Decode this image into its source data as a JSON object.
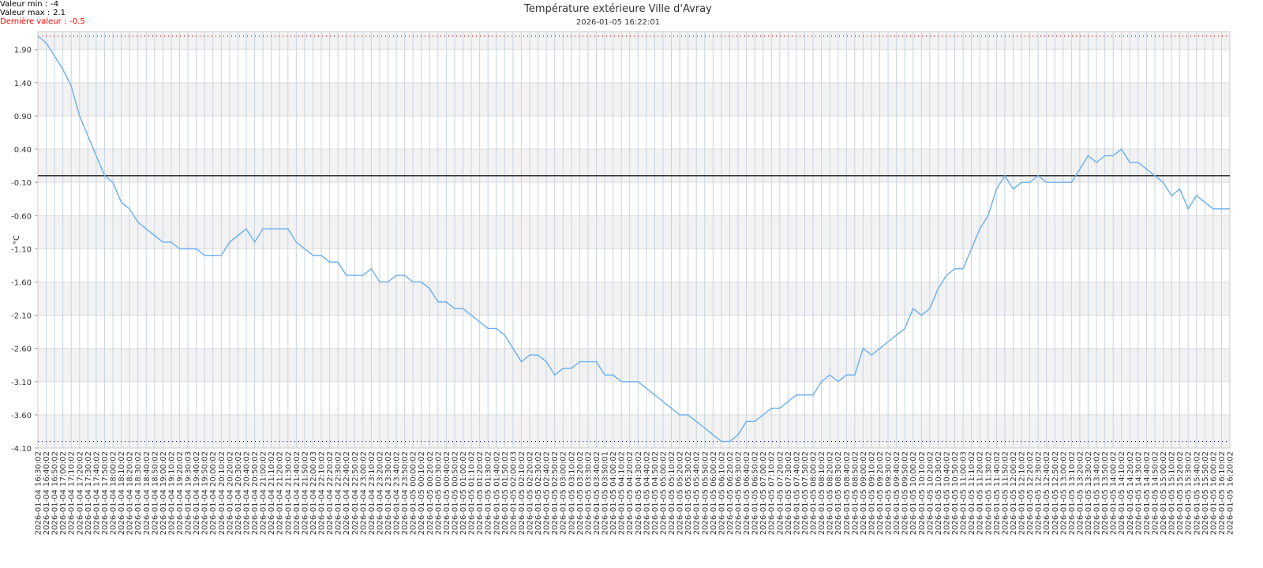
{
  "chart_data": {
    "type": "line",
    "title": "Température extérieure Ville d'Avray",
    "subtitle": "2026-01-05 16:22:01",
    "y_label": "°C",
    "stats": [
      {
        "label": "Valeur min :",
        "value": -4,
        "color": "#000000",
        "line_color": "#0000cc"
      },
      {
        "label": "Valeur max :",
        "value": 2.1,
        "color": "#000000",
        "line_color": "#cc0000"
      },
      {
        "label": "Dernière valeur :",
        "value": -0.5,
        "color": "#ff0000"
      }
    ],
    "reference_line": 0,
    "ylim": [
      -4.1,
      2.17
    ],
    "yticks": [
      {
        "value": -4.1,
        "label": "-4.10"
      },
      {
        "value": -3.6,
        "label": "-3.60"
      },
      {
        "value": -3.1,
        "label": "-3.10"
      },
      {
        "value": -2.6,
        "label": "-2.60"
      },
      {
        "value": -2.1,
        "label": "-2.10"
      },
      {
        "value": -1.6,
        "label": "-1.60"
      },
      {
        "value": -1.1,
        "label": "-1.10"
      },
      {
        "value": -0.6,
        "label": "-0.60"
      },
      {
        "value": -0.1,
        "label": "-0.10"
      },
      {
        "value": 0.4,
        "label": "0.40"
      },
      {
        "value": 0.9,
        "label": "0.90"
      },
      {
        "value": 1.4,
        "label": "1.40"
      },
      {
        "value": 1.9,
        "label": "1.90"
      }
    ],
    "grid": true,
    "categories": [
      "2026-01-04 16:30:02",
      "2026-01-04 16:40:02",
      "2026-01-04 16:50:02",
      "2026-01-04 17:00:02",
      "2026-01-04 17:10:02",
      "2026-01-04 17:20:02",
      "2026-01-04 17:30:02",
      "2026-01-04 17:40:02",
      "2026-01-04 17:50:02",
      "2026-01-04 18:00:02",
      "2026-01-04 18:10:02",
      "2026-01-04 18:20:02",
      "2026-01-04 18:30:02",
      "2026-01-04 18:40:02",
      "2026-01-04 18:50:02",
      "2026-01-04 19:00:02",
      "2026-01-04 19:10:02",
      "2026-01-04 19:20:02",
      "2026-01-04 19:30:03",
      "2026-01-04 19:40:02",
      "2026-01-04 19:50:02",
      "2026-01-04 20:00:02",
      "2026-01-04 20:10:02",
      "2026-01-04 20:20:02",
      "2026-01-04 20:30:02",
      "2026-01-04 20:40:02",
      "2026-01-04 20:50:02",
      "2026-01-04 21:00:02",
      "2026-01-04 21:10:02",
      "2026-01-04 21:20:02",
      "2026-01-04 21:30:02",
      "2026-01-04 21:40:02",
      "2026-01-04 21:50:02",
      "2026-01-04 22:00:03",
      "2026-01-04 22:10:02",
      "2026-01-04 22:20:02",
      "2026-01-04 22:30:02",
      "2026-01-04 22:40:02",
      "2026-01-04 22:50:02",
      "2026-01-04 23:00:02",
      "2026-01-04 23:10:02",
      "2026-01-04 23:20:02",
      "2026-01-04 23:30:02",
      "2026-01-04 23:40:02",
      "2026-01-04 23:50:02",
      "2026-01-05 00:00:02",
      "2026-01-05 00:10:02",
      "2026-01-05 00:20:02",
      "2026-01-05 00:30:02",
      "2026-01-05 00:40:02",
      "2026-01-05 00:50:02",
      "2026-01-05 01:00:02",
      "2026-01-05 01:10:02",
      "2026-01-05 01:20:02",
      "2026-01-05 01:30:02",
      "2026-01-05 01:40:02",
      "2026-01-05 01:50:02",
      "2026-01-05 02:00:03",
      "2026-01-05 02:10:02",
      "2026-01-05 02:20:02",
      "2026-01-05 02:30:02",
      "2026-01-05 02:40:02",
      "2026-01-05 02:50:02",
      "2026-01-05 03:00:02",
      "2026-01-05 03:10:02",
      "2026-01-05 03:20:02",
      "2026-01-05 03:30:02",
      "2026-01-05 03:40:02",
      "2026-01-05 03:50:01",
      "2026-01-05 04:00:02",
      "2026-01-05 04:10:02",
      "2026-01-05 04:20:02",
      "2026-01-05 04:30:02",
      "2026-01-05 04:40:02",
      "2026-01-05 04:50:02",
      "2026-01-05 05:00:02",
      "2026-01-05 05:10:02",
      "2026-01-05 05:20:02",
      "2026-01-05 05:30:02",
      "2026-01-05 05:40:02",
      "2026-01-05 05:50:02",
      "2026-01-05 06:00:02",
      "2026-01-05 06:10:02",
      "2026-01-05 06:20:02",
      "2026-01-05 06:30:02",
      "2026-01-05 06:40:02",
      "2026-01-05 06:50:02",
      "2026-01-05 07:00:02",
      "2026-01-05 07:10:02",
      "2026-01-05 07:20:02",
      "2026-01-05 07:30:02",
      "2026-01-05 07:40:02",
      "2026-01-05 07:50:02",
      "2026-01-05 08:00:02",
      "2026-01-05 08:10:02",
      "2026-01-05 08:20:02",
      "2026-01-05 08:30:02",
      "2026-01-05 08:40:02",
      "2026-01-05 08:50:02",
      "2026-01-05 09:00:02",
      "2026-01-05 09:10:02",
      "2026-01-05 09:20:02",
      "2026-01-05 09:30:02",
      "2026-01-05 09:40:02",
      "2026-01-05 09:50:02",
      "2026-01-05 10:00:02",
      "2026-01-05 10:10:02",
      "2026-01-05 10:20:02",
      "2026-01-05 10:30:02",
      "2026-01-05 10:40:02",
      "2026-01-05 10:50:02",
      "2026-01-05 11:00:03",
      "2026-01-05 11:10:02",
      "2026-01-05 11:20:02",
      "2026-01-05 11:30:02",
      "2026-01-05 11:40:02",
      "2026-01-05 11:50:02",
      "2026-01-05 12:00:02",
      "2026-01-05 12:10:02",
      "2026-01-05 12:20:02",
      "2026-01-05 12:30:02",
      "2026-01-05 12:40:02",
      "2026-01-05 12:50:02",
      "2026-01-05 13:00:02",
      "2026-01-05 13:10:02",
      "2026-01-05 13:20:02",
      "2026-01-05 13:30:02",
      "2026-01-05 13:40:02",
      "2026-01-05 13:50:02",
      "2026-01-05 14:00:02",
      "2026-01-05 14:10:02",
      "2026-01-05 14:20:02",
      "2026-01-05 14:30:02",
      "2026-01-05 14:40:02",
      "2026-01-05 14:50:02",
      "2026-01-05 15:00:02",
      "2026-01-05 15:10:02",
      "2026-01-05 15:20:02",
      "2026-01-05 15:30:02",
      "2026-01-05 15:40:02",
      "2026-01-05 15:50:02",
      "2026-01-05 16:00:02",
      "2026-01-05 16:10:02",
      "2026-01-05 16:20:02"
    ],
    "color": "#6aaef0",
    "values": [
      2.1,
      2.0,
      1.8,
      1.6,
      1.35,
      0.9,
      0.6,
      0.3,
      0.0,
      -0.1,
      -0.4,
      -0.5,
      -0.7,
      -0.8,
      -0.9,
      -1.0,
      -1.0,
      -1.1,
      -1.1,
      -1.1,
      -1.2,
      -1.2,
      -1.2,
      -1.0,
      -0.9,
      -0.8,
      -1.0,
      -0.8,
      -0.8,
      -0.8,
      -0.8,
      -1.0,
      -1.1,
      -1.2,
      -1.2,
      -1.3,
      -1.3,
      -1.5,
      -1.5,
      -1.5,
      -1.4,
      -1.6,
      -1.6,
      -1.5,
      -1.5,
      -1.6,
      -1.6,
      -1.7,
      -1.9,
      -1.9,
      -2.0,
      -2.0,
      -2.1,
      -2.2,
      -2.3,
      -2.3,
      -2.4,
      -2.6,
      -2.8,
      -2.7,
      -2.7,
      -2.8,
      -3.0,
      -2.9,
      -2.9,
      -2.8,
      -2.8,
      -2.8,
      -3.0,
      -3.0,
      -3.1,
      -3.1,
      -3.1,
      -3.2,
      -3.3,
      -3.4,
      -3.5,
      -3.6,
      -3.6,
      -3.7,
      -3.8,
      -3.9,
      -4.0,
      -4.0,
      -3.9,
      -3.7,
      -3.7,
      -3.6,
      -3.5,
      -3.5,
      -3.4,
      -3.3,
      -3.3,
      -3.3,
      -3.1,
      -3.0,
      -3.1,
      -3.0,
      -3.0,
      -2.6,
      -2.7,
      -2.6,
      -2.5,
      -2.4,
      -2.3,
      -2.0,
      -2.1,
      -2.0,
      -1.7,
      -1.5,
      -1.4,
      -1.4,
      -1.1,
      -0.8,
      -0.6,
      -0.2,
      0.0,
      -0.2,
      -0.1,
      -0.1,
      0.0,
      -0.1,
      -0.1,
      -0.1,
      -0.1,
      0.1,
      0.3,
      0.2,
      0.3,
      0.3,
      0.4,
      0.2,
      0.2,
      0.1,
      0.0,
      -0.1,
      -0.3,
      -0.2,
      -0.5,
      -0.3,
      -0.4,
      -0.5,
      -0.5,
      -0.5
    ]
  }
}
